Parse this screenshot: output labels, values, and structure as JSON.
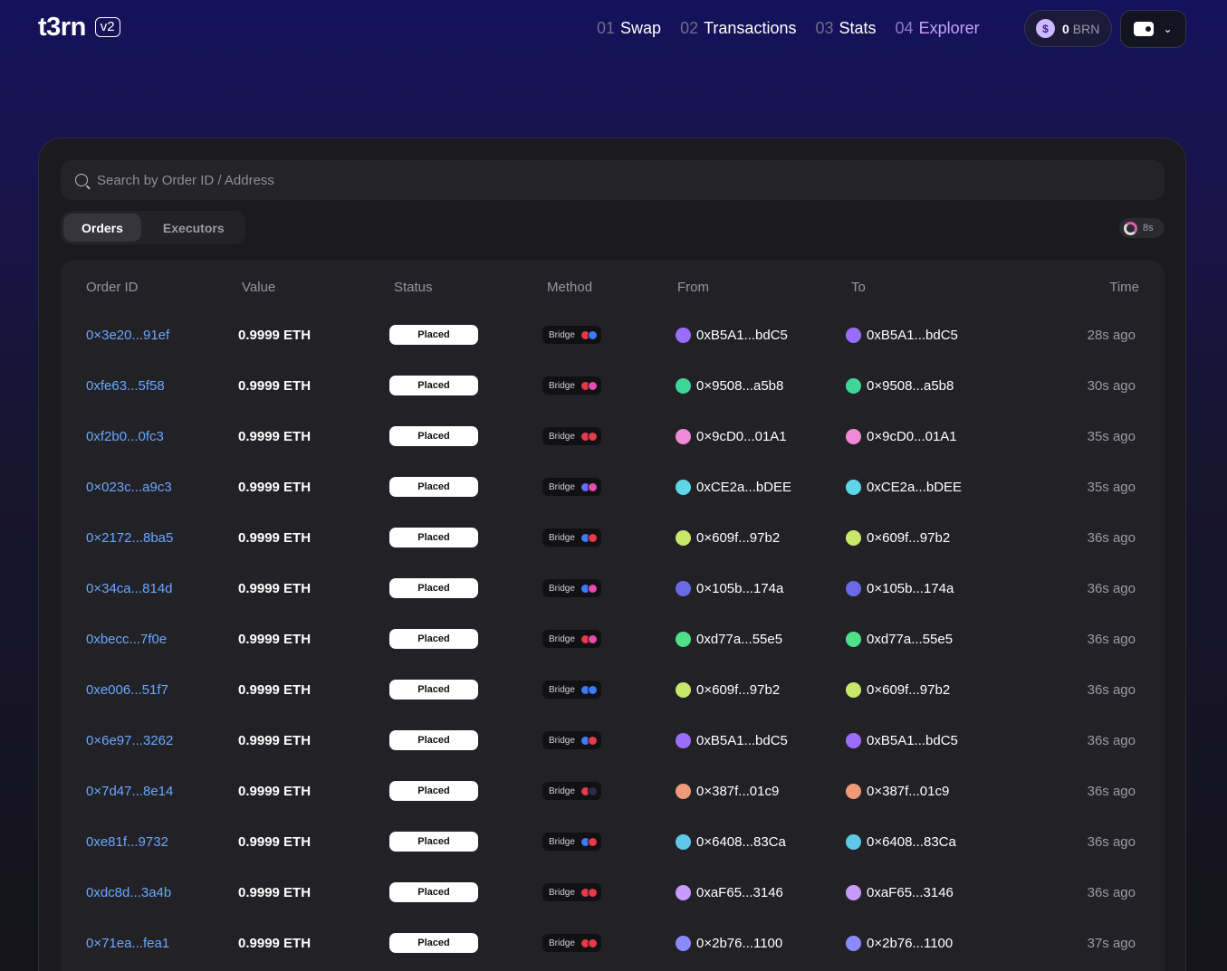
{
  "header": {
    "logo": "t3rn",
    "version_badge": "v2",
    "nav": [
      {
        "num": "01",
        "label": "Swap",
        "active": false
      },
      {
        "num": "02",
        "label": "Transactions",
        "active": false
      },
      {
        "num": "03",
        "label": "Stats",
        "active": false
      },
      {
        "num": "04",
        "label": "Explorer",
        "active": true
      }
    ],
    "balance": {
      "value": "0",
      "unit": "BRN"
    },
    "wallet_icon": "wallet-icon"
  },
  "search": {
    "placeholder": "Search by Order ID / Address"
  },
  "tabs": [
    {
      "label": "Orders",
      "active": true
    },
    {
      "label": "Executors",
      "active": false
    }
  ],
  "refresh": {
    "label": "8s"
  },
  "table": {
    "columns": [
      "Order ID",
      "Value",
      "Status",
      "Method",
      "From",
      "To",
      "Time"
    ],
    "rows": [
      {
        "id": "0×3e20...91ef",
        "value": "0.9999 ETH",
        "status": "Placed",
        "method": "Bridge",
        "chains": [
          "#e8394a",
          "#3b7cff"
        ],
        "from": "0xB5A1...bdC5",
        "to": "0xB5A1...bdC5",
        "avatar": "#9b6dff",
        "time": "28s ago"
      },
      {
        "id": "0xfe63...5f58",
        "value": "0.9999 ETH",
        "status": "Placed",
        "method": "Bridge",
        "chains": [
          "#e8394a",
          "#e84bb0"
        ],
        "from": "0×9508...a5b8",
        "to": "0×9508...a5b8",
        "avatar": "#3fd69a",
        "time": "30s ago"
      },
      {
        "id": "0xf2b0...0fc3",
        "value": "0.9999 ETH",
        "status": "Placed",
        "method": "Bridge",
        "chains": [
          "#e8394a",
          "#e8394a"
        ],
        "from": "0×9cD0...01A1",
        "to": "0×9cD0...01A1",
        "avatar": "#f08ad8",
        "time": "35s ago"
      },
      {
        "id": "0×023c...a9c3",
        "value": "0.9999 ETH",
        "status": "Placed",
        "method": "Bridge",
        "chains": [
          "#6a6aff",
          "#e84bb0"
        ],
        "from": "0xCE2a...bDEE",
        "to": "0xCE2a...bDEE",
        "avatar": "#5fd6e8",
        "time": "35s ago"
      },
      {
        "id": "0×2172...8ba5",
        "value": "0.9999 ETH",
        "status": "Placed",
        "method": "Bridge",
        "chains": [
          "#3b7cff",
          "#e8394a"
        ],
        "from": "0×609f...97b2",
        "to": "0×609f...97b2",
        "avatar": "#c8e86a",
        "time": "36s ago"
      },
      {
        "id": "0×34ca...814d",
        "value": "0.9999 ETH",
        "status": "Placed",
        "method": "Bridge",
        "chains": [
          "#3b7cff",
          "#e84bb0"
        ],
        "from": "0×105b...174a",
        "to": "0×105b...174a",
        "avatar": "#6a6ae8",
        "time": "36s ago"
      },
      {
        "id": "0xbecc...7f0e",
        "value": "0.9999 ETH",
        "status": "Placed",
        "method": "Bridge",
        "chains": [
          "#e8394a",
          "#e84bb0"
        ],
        "from": "0xd77a...55e5",
        "to": "0xd77a...55e5",
        "avatar": "#4fe08a",
        "time": "36s ago"
      },
      {
        "id": "0xe006...51f7",
        "value": "0.9999 ETH",
        "status": "Placed",
        "method": "Bridge",
        "chains": [
          "#3b7cff",
          "#3b7cff"
        ],
        "from": "0×609f...97b2",
        "to": "0×609f...97b2",
        "avatar": "#c8e86a",
        "time": "36s ago"
      },
      {
        "id": "0×6e97...3262",
        "value": "0.9999 ETH",
        "status": "Placed",
        "method": "Bridge",
        "chains": [
          "#3b7cff",
          "#e8394a"
        ],
        "from": "0xB5A1...bdC5",
        "to": "0xB5A1...bdC5",
        "avatar": "#9b6dff",
        "time": "36s ago"
      },
      {
        "id": "0×7d47...8e14",
        "value": "0.9999 ETH",
        "status": "Placed",
        "method": "Bridge",
        "chains": [
          "#e8394a",
          "#2a2a4a"
        ],
        "from": "0×387f...01c9",
        "to": "0×387f...01c9",
        "avatar": "#f09a7a",
        "time": "36s ago"
      },
      {
        "id": "0xe81f...9732",
        "value": "0.9999 ETH",
        "status": "Placed",
        "method": "Bridge",
        "chains": [
          "#3b7cff",
          "#e8394a"
        ],
        "from": "0×6408...83Ca",
        "to": "0×6408...83Ca",
        "avatar": "#5fc8e8",
        "time": "36s ago"
      },
      {
        "id": "0xdc8d...3a4b",
        "value": "0.9999 ETH",
        "status": "Placed",
        "method": "Bridge",
        "chains": [
          "#e8394a",
          "#e8394a"
        ],
        "from": "0xaF65...3146",
        "to": "0xaF65...3146",
        "avatar": "#c89aff",
        "time": "36s ago"
      },
      {
        "id": "0×71ea...fea1",
        "value": "0.9999 ETH",
        "status": "Placed",
        "method": "Bridge",
        "chains": [
          "#e8394a",
          "#e8394a"
        ],
        "from": "0×2b76...1100",
        "to": "0×2b76...1100",
        "avatar": "#8a8aff",
        "time": "37s ago"
      }
    ]
  }
}
